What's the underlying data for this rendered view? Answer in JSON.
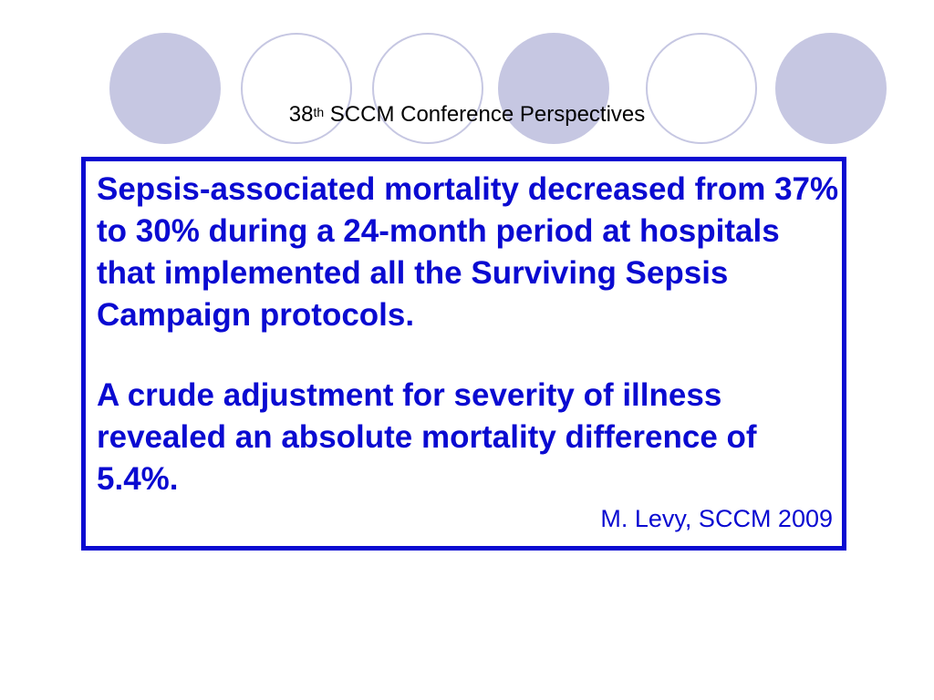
{
  "slide": {
    "title_base": "38",
    "title_sup": "th",
    "title_rest": " SCCM Conference Perspectives",
    "paragraph_1": "Sepsis-associated mortality decreased from 37% to 30% during a 24-month period at hospitals that implemented all the Surviving Sepsis Campaign protocols.",
    "paragraph_2": "A crude adjustment for severity of illness revealed an absolute mortality difference of 5.4%.",
    "citation": "M. Levy, SCCM 2009"
  },
  "colors": {
    "accent_blue": "#0a0ad1",
    "circle_lavender": "#c6c7e2"
  }
}
